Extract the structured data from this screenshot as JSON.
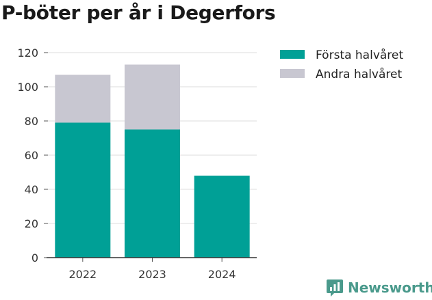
{
  "chart_data": {
    "type": "bar",
    "stacked": true,
    "title": "P-böter per år i Degerfors",
    "categories": [
      "2022",
      "2023",
      "2024"
    ],
    "series": [
      {
        "name": "Första halvåret",
        "values": [
          79,
          75,
          48
        ],
        "color": "#00a096"
      },
      {
        "name": "Andra halvåret",
        "values": [
          28,
          38,
          0
        ],
        "color": "#c8c7d1"
      }
    ],
    "ylim": [
      0,
      120
    ],
    "yticks": [
      0,
      20,
      40,
      60,
      80,
      100,
      120
    ],
    "grid": true,
    "legend": "top-right"
  },
  "brand": {
    "name": "Newsworthy",
    "logo_icon": "newsworthy-logo-icon",
    "color": "#4a9a8c"
  }
}
